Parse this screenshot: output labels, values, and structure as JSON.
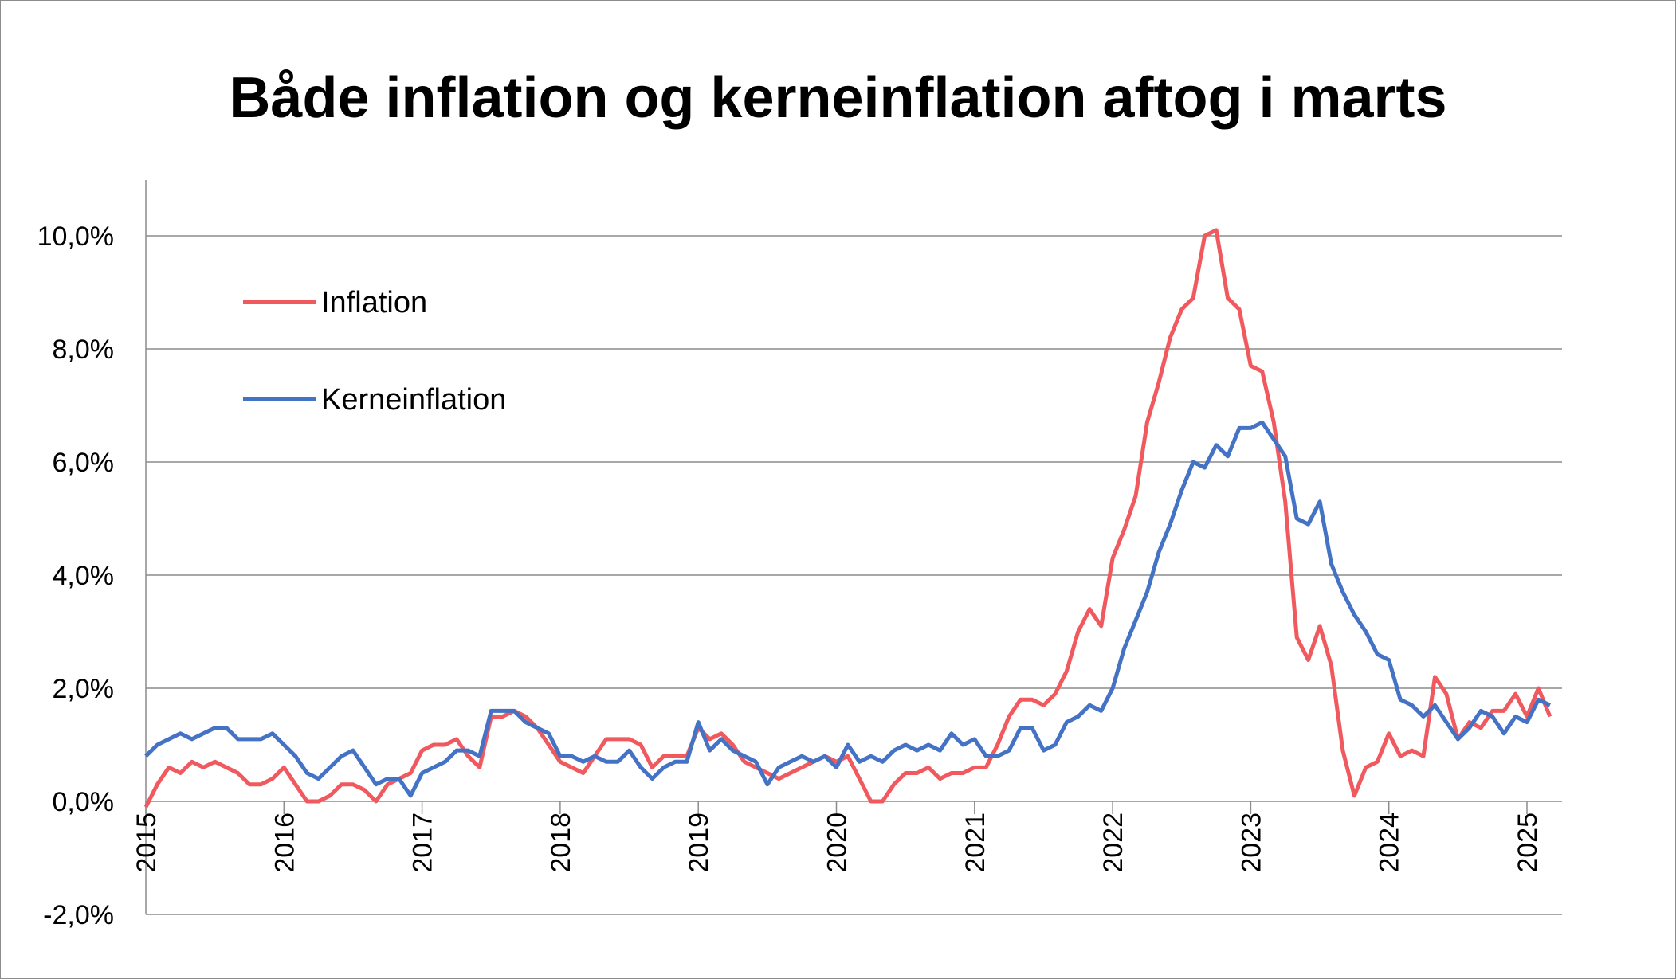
{
  "chart_data": {
    "type": "line",
    "title": "Både inflation og kerneinflation aftog i marts",
    "xlabel": "",
    "ylabel": "",
    "ylim": [
      -2.0,
      10.0
    ],
    "yticks": [
      {
        "value": 10,
        "label": "10,0%"
      },
      {
        "value": 8,
        "label": "8,0%"
      },
      {
        "value": 6,
        "label": "6,0%"
      },
      {
        "value": 4,
        "label": "4,0%"
      },
      {
        "value": 2,
        "label": "2,0%"
      },
      {
        "value": 0,
        "label": "0,0%"
      },
      {
        "value": -2,
        "label": "-2,0%"
      }
    ],
    "xticks": [
      "2015",
      "2016",
      "2017",
      "2018",
      "2019",
      "2020",
      "2021",
      "2022",
      "2023",
      "2024",
      "2025"
    ],
    "x_start": "2015-01",
    "x_end": "2025-03",
    "grid": "horizontal",
    "legend_position": "upper-left",
    "series": [
      {
        "name": "Inflation",
        "color": "#f05a5f",
        "values": [
          -0.1,
          0.3,
          0.6,
          0.5,
          0.7,
          0.6,
          0.7,
          0.6,
          0.5,
          0.3,
          0.3,
          0.4,
          0.6,
          0.3,
          0.0,
          0.0,
          0.1,
          0.3,
          0.3,
          0.2,
          0.0,
          0.3,
          0.4,
          0.5,
          0.9,
          1.0,
          1.0,
          1.1,
          0.8,
          0.6,
          1.5,
          1.5,
          1.6,
          1.5,
          1.3,
          1.0,
          0.7,
          0.6,
          0.5,
          0.8,
          1.1,
          1.1,
          1.1,
          1.0,
          0.6,
          0.8,
          0.8,
          0.8,
          1.3,
          1.1,
          1.2,
          1.0,
          0.7,
          0.6,
          0.5,
          0.4,
          0.5,
          0.6,
          0.7,
          0.8,
          0.7,
          0.8,
          0.4,
          0.0,
          0.0,
          0.3,
          0.5,
          0.5,
          0.6,
          0.4,
          0.5,
          0.5,
          0.6,
          0.6,
          1.0,
          1.5,
          1.8,
          1.8,
          1.7,
          1.9,
          2.3,
          3.0,
          3.4,
          3.1,
          4.3,
          4.8,
          5.4,
          6.7,
          7.4,
          8.2,
          8.7,
          8.9,
          10.0,
          10.1,
          8.9,
          8.7,
          7.7,
          7.6,
          6.7,
          5.3,
          2.9,
          2.5,
          3.1,
          2.4,
          0.9,
          0.1,
          0.6,
          0.7,
          1.2,
          0.8,
          0.9,
          0.8,
          2.2,
          1.9,
          1.1,
          1.4,
          1.3,
          1.6,
          1.6,
          1.9,
          1.5,
          2.0,
          1.5
        ]
      },
      {
        "name": "Kerneinflation",
        "color": "#4472c4",
        "values": [
          0.8,
          1.0,
          1.1,
          1.2,
          1.1,
          1.2,
          1.3,
          1.3,
          1.1,
          1.1,
          1.1,
          1.2,
          1.0,
          0.8,
          0.5,
          0.4,
          0.6,
          0.8,
          0.9,
          0.6,
          0.3,
          0.4,
          0.4,
          0.1,
          0.5,
          0.6,
          0.7,
          0.9,
          0.9,
          0.8,
          1.6,
          1.6,
          1.6,
          1.4,
          1.3,
          1.2,
          0.8,
          0.8,
          0.7,
          0.8,
          0.7,
          0.7,
          0.9,
          0.6,
          0.4,
          0.6,
          0.7,
          0.7,
          1.4,
          0.9,
          1.1,
          0.9,
          0.8,
          0.7,
          0.3,
          0.6,
          0.7,
          0.8,
          0.7,
          0.8,
          0.6,
          1.0,
          0.7,
          0.8,
          0.7,
          0.9,
          1.0,
          0.9,
          1.0,
          0.9,
          1.2,
          1.0,
          1.1,
          0.8,
          0.8,
          0.9,
          1.3,
          1.3,
          0.9,
          1.0,
          1.4,
          1.5,
          1.7,
          1.6,
          2.0,
          2.7,
          3.2,
          3.7,
          4.4,
          4.9,
          5.5,
          6.0,
          5.9,
          6.3,
          6.1,
          6.6,
          6.6,
          6.7,
          6.4,
          6.1,
          5.0,
          4.9,
          5.3,
          4.2,
          3.7,
          3.3,
          3.0,
          2.6,
          2.5,
          1.8,
          1.7,
          1.5,
          1.7,
          1.4,
          1.1,
          1.3,
          1.6,
          1.5,
          1.2,
          1.5,
          1.4,
          1.8,
          1.7
        ]
      }
    ]
  }
}
